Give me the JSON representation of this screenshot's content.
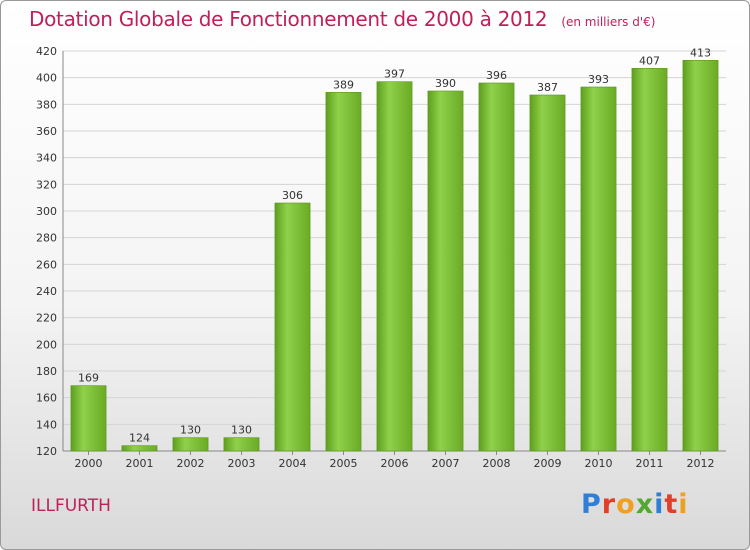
{
  "chart_data": {
    "type": "bar",
    "title": "Dotation Globale de Fonctionnement de 2000 à 2012",
    "subtitle": "(en milliers d'€)",
    "categories": [
      "2000",
      "2001",
      "2002",
      "2003",
      "2004",
      "2005",
      "2006",
      "2007",
      "2008",
      "2009",
      "2010",
      "2011",
      "2012"
    ],
    "values": [
      169,
      124,
      130,
      130,
      306,
      389,
      397,
      390,
      396,
      387,
      393,
      407,
      413
    ],
    "ylim": [
      120,
      420
    ],
    "yticks": [
      120,
      140,
      160,
      180,
      200,
      220,
      240,
      260,
      280,
      300,
      320,
      340,
      360,
      380,
      400,
      420
    ],
    "grid": true,
    "bar_color": "#7cc234",
    "legend": null
  },
  "commune": "ILLFURTH",
  "logo": {
    "letters": [
      "P",
      "r",
      "o",
      "x",
      "i",
      "t",
      "i"
    ]
  }
}
